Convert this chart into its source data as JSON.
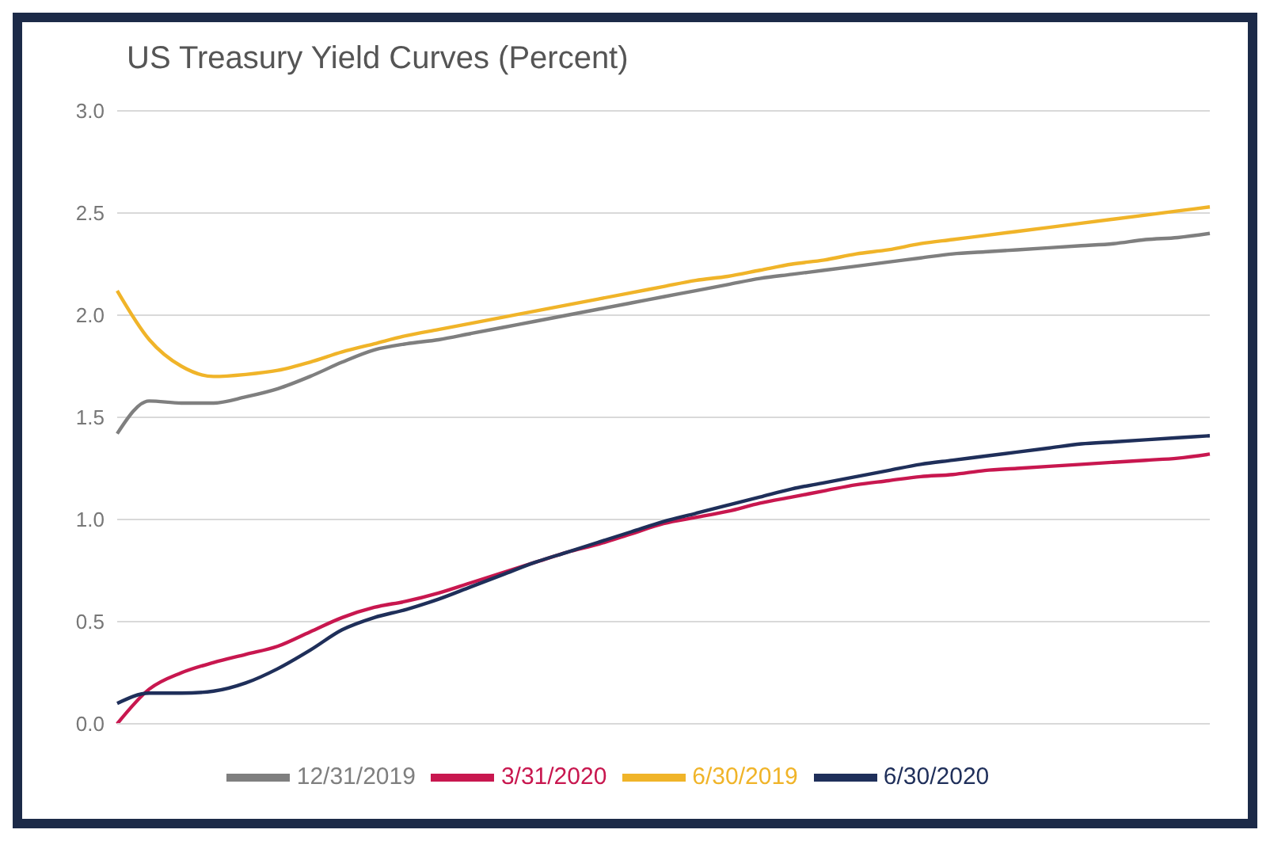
{
  "chart_data": {
    "type": "line",
    "title": "US Treasury Yield Curves (Percent)",
    "categories": [
      null,
      null,
      null,
      null,
      null,
      null,
      null,
      null,
      null,
      null,
      null,
      null,
      null,
      null,
      null,
      null,
      null,
      null,
      null,
      null,
      null,
      null,
      null,
      null,
      null,
      null,
      null,
      null,
      null,
      null,
      null,
      null,
      null,
      null,
      null
    ],
    "series": [
      {
        "name": "6/30/2019",
        "color": "#f0b429",
        "values": [
          2.12,
          1.88,
          1.75,
          1.7,
          1.71,
          1.73,
          1.77,
          1.82,
          1.86,
          1.9,
          1.93,
          1.96,
          1.99,
          2.02,
          2.05,
          2.08,
          2.11,
          2.14,
          2.17,
          2.19,
          2.22,
          2.25,
          2.27,
          2.3,
          2.32,
          2.35,
          2.37,
          2.39,
          2.41,
          2.43,
          2.45,
          2.47,
          2.49,
          2.51,
          2.53
        ]
      },
      {
        "name": "12/31/2019",
        "color": "#7f7f7f",
        "values": [
          1.42,
          1.58,
          1.57,
          1.57,
          1.6,
          1.64,
          1.7,
          1.77,
          1.83,
          1.86,
          1.88,
          1.91,
          1.94,
          1.97,
          2.0,
          2.03,
          2.06,
          2.09,
          2.12,
          2.15,
          2.18,
          2.2,
          2.22,
          2.24,
          2.26,
          2.28,
          2.3,
          2.31,
          2.32,
          2.33,
          2.34,
          2.35,
          2.37,
          2.38,
          2.4
        ]
      },
      {
        "name": "3/31/2020",
        "color": "#c8174f",
        "values": [
          0.0,
          0.17,
          0.25,
          0.3,
          0.34,
          0.38,
          0.45,
          0.52,
          0.57,
          0.6,
          0.64,
          0.69,
          0.74,
          0.79,
          0.84,
          0.88,
          0.93,
          0.98,
          1.01,
          1.04,
          1.08,
          1.11,
          1.14,
          1.17,
          1.19,
          1.21,
          1.22,
          1.24,
          1.25,
          1.26,
          1.27,
          1.28,
          1.29,
          1.3,
          1.32
        ]
      },
      {
        "name": "6/30/2020",
        "color": "#1f2f5a",
        "values": [
          0.1,
          0.15,
          0.15,
          0.16,
          0.2,
          0.27,
          0.36,
          0.46,
          0.52,
          0.56,
          0.61,
          0.67,
          0.73,
          0.79,
          0.84,
          0.89,
          0.94,
          0.99,
          1.03,
          1.07,
          1.11,
          1.15,
          1.18,
          1.21,
          1.24,
          1.27,
          1.29,
          1.31,
          1.33,
          1.35,
          1.37,
          1.38,
          1.39,
          1.4,
          1.41
        ]
      }
    ],
    "ylim": [
      0,
      3
    ],
    "yticks": [
      {
        "value": 0,
        "label": "0.0"
      },
      {
        "value": 0.5,
        "label": "0.5"
      },
      {
        "value": 1,
        "label": "1.0"
      },
      {
        "value": 1.5,
        "label": "1.5"
      },
      {
        "value": 2,
        "label": "2.0"
      },
      {
        "value": 2.5,
        "label": "2.5"
      },
      {
        "value": 3,
        "label": "3.0"
      }
    ],
    "grid": "y",
    "legend": "bottom",
    "marker": "none",
    "line_style": "solid"
  }
}
